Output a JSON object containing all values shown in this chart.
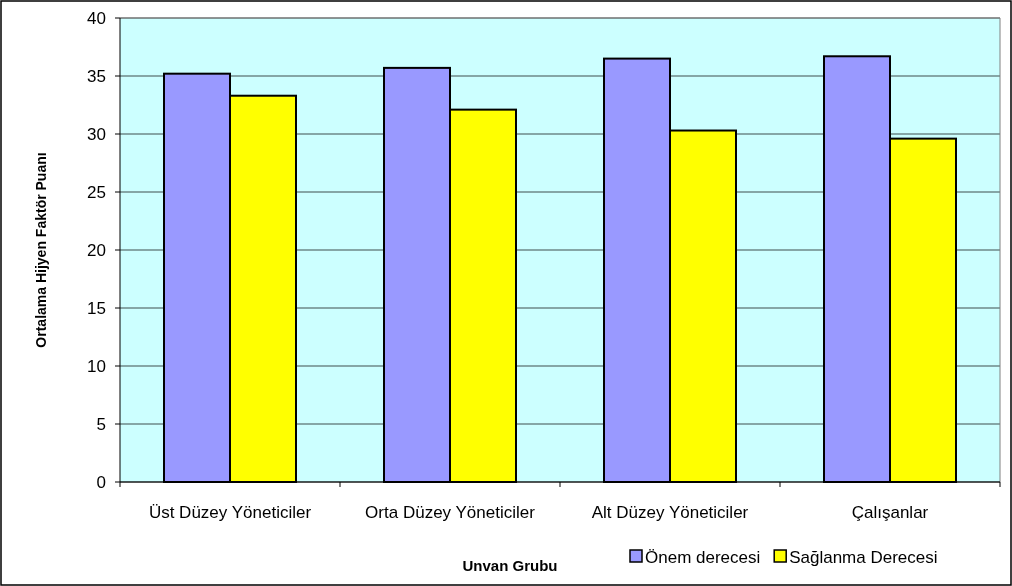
{
  "chart_data": {
    "type": "bar",
    "xlabel": "Unvan Grubu",
    "ylabel": "Ortalama Hijyen Faktör Puanı",
    "categories": [
      "Üst Düzey Yöneticiler",
      "Orta Düzey Yöneticiler",
      "Alt Düzey Yöneticiler",
      "Çalışanlar"
    ],
    "series": [
      {
        "name": "Önem derecesi",
        "color": "#9999ff",
        "values": [
          35.2,
          35.7,
          36.5,
          36.7
        ]
      },
      {
        "name": "Sağlanma Derecesi",
        "color": "#ffff00",
        "values": [
          33.3,
          32.1,
          30.3,
          29.6
        ]
      }
    ],
    "ylim": [
      0,
      40
    ],
    "yticks": [
      0,
      5,
      10,
      15,
      20,
      25,
      30,
      35,
      40
    ],
    "grid": "y",
    "legend": "bottom right"
  }
}
